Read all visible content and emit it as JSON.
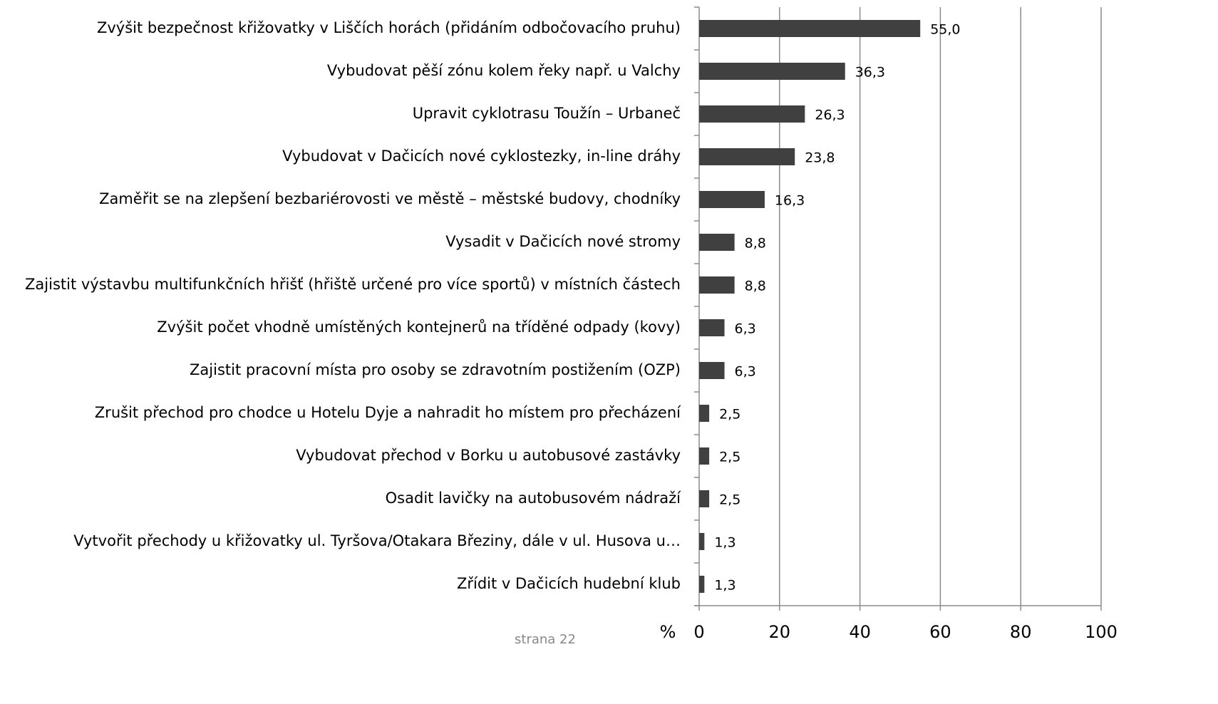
{
  "chart_data": {
    "type": "barh",
    "categories": [
      "Zvýšit bezpečnost křižovatky v Liščích horách (přidáním odbočovacího pruhu)",
      "Vybudovat pěší zónu kolem řeky např. u Valchy",
      "Upravit cyklotrasu Toužín – Urbaneč",
      "Vybudovat v Dačicích nové cyklostezky, in-line dráhy",
      "Zaměřit se na zlepšení bezbariérovosti ve městě – městské budovy, chodníky",
      "Vysadit v Dačicích nové stromy",
      "Zajistit výstavbu multifunkčních hřišť (hřiště určené pro více sportů) v místních částech",
      "Zvýšit počet vhodně umístěných kontejnerů na tříděné odpady (kovy)",
      "Zajistit pracovní místa pro osoby se zdravotním postižením (OZP)",
      "Zrušit přechod pro chodce u Hotelu Dyje a nahradit ho místem pro přecházení",
      "Vybudovat přechod v Borku u autobusové zastávky",
      "Osadit lavičky na autobusovém nádraží",
      "Vytvořit přechody u křižovatky ul. Tyršova/Otakara Březiny, dále v ul. Husova u…",
      "Zřídit v Dačicích hudební klub"
    ],
    "values": [
      55.0,
      36.3,
      26.3,
      23.8,
      16.3,
      8.8,
      8.8,
      6.3,
      6.3,
      2.5,
      2.5,
      2.5,
      1.3,
      1.3
    ],
    "value_labels": [
      "55,0",
      "36,3",
      "26,3",
      "23,8",
      "16,3",
      "8,8",
      "8,8",
      "6,3",
      "6,3",
      "2,5",
      "2,5",
      "2,5",
      "1,3",
      "1,3"
    ],
    "color": "#404040",
    "xlabel": "%",
    "xlim": [
      0,
      100
    ],
    "xticks": [
      0,
      20,
      40,
      60,
      80,
      100
    ],
    "grid": true
  },
  "footer": "strana 22"
}
